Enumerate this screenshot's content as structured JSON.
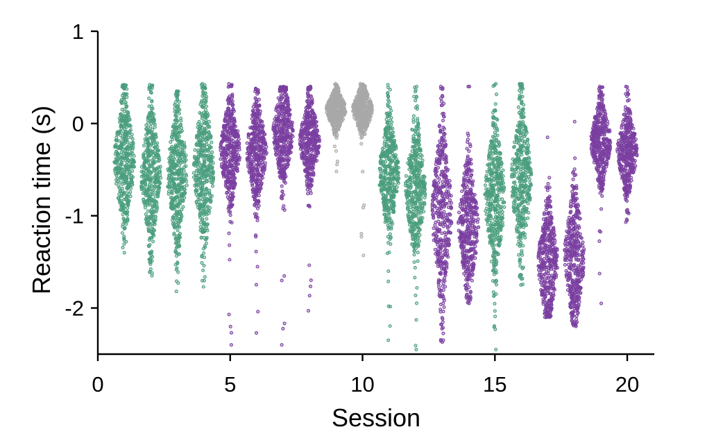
{
  "chart_data": {
    "type": "scatter",
    "title": "",
    "xlabel": "Session",
    "ylabel": "Reaction time (s)",
    "xlim": [
      0,
      21
    ],
    "ylim": [
      -2.5,
      1
    ],
    "xticks": [
      0,
      5,
      10,
      15,
      20
    ],
    "xtick_labels": [
      "0",
      "5",
      "10",
      "15",
      "20"
    ],
    "yticks": [
      1,
      0,
      -1,
      -2
    ],
    "ytick_labels": [
      "1",
      "0",
      "-1",
      "-2"
    ],
    "grid": false,
    "legend": "none",
    "colors": {
      "green": "#4a9e7e",
      "purple": "#7a3fa0",
      "gray": "#a8a8a8"
    },
    "sessions": [
      {
        "session": 1,
        "color": "green",
        "center": -0.4,
        "spread": 0.4,
        "max": 0.42,
        "min": -1.4
      },
      {
        "session": 2,
        "color": "green",
        "center": -0.55,
        "spread": 0.4,
        "max": 0.42,
        "min": -1.65
      },
      {
        "session": 3,
        "color": "green",
        "center": -0.55,
        "spread": 0.4,
        "max": 0.35,
        "min": -1.82
      },
      {
        "session": 4,
        "color": "green",
        "center": -0.5,
        "spread": 0.45,
        "max": 0.43,
        "min": -1.77
      },
      {
        "session": 5,
        "color": "purple",
        "center": -0.3,
        "spread": 0.3,
        "max": 0.43,
        "min": -2.4
      },
      {
        "session": 6,
        "color": "purple",
        "center": -0.3,
        "spread": 0.3,
        "max": 0.38,
        "min": -2.27
      },
      {
        "session": 7,
        "color": "purple",
        "center": -0.1,
        "spread": 0.3,
        "max": 0.4,
        "min": -2.4
      },
      {
        "session": 8,
        "color": "purple",
        "center": -0.2,
        "spread": 0.25,
        "max": 0.4,
        "min": -2.03
      },
      {
        "session": 9,
        "color": "gray",
        "center": 0.15,
        "spread": 0.12,
        "max": 0.43,
        "min": -0.52
      },
      {
        "session": 10,
        "color": "gray",
        "center": 0.15,
        "spread": 0.14,
        "max": 0.43,
        "min": -1.43
      },
      {
        "session": 11,
        "color": "green",
        "center": -0.55,
        "spread": 0.35,
        "max": 0.42,
        "min": -2.35
      },
      {
        "session": 12,
        "color": "green",
        "center": -0.7,
        "spread": 0.4,
        "max": 0.4,
        "min": -2.45
      },
      {
        "session": 13,
        "color": "purple",
        "center": -0.95,
        "spread": 0.5,
        "max": 0.4,
        "min": -2.37
      },
      {
        "session": 14,
        "color": "purple",
        "center": -1.1,
        "spread": 0.4,
        "max": 0.4,
        "min": -1.95
      },
      {
        "session": 15,
        "color": "green",
        "center": -0.8,
        "spread": 0.45,
        "max": 0.43,
        "min": -2.45
      },
      {
        "session": 16,
        "color": "green",
        "center": -0.6,
        "spread": 0.45,
        "max": 0.43,
        "min": -1.75
      },
      {
        "session": 17,
        "color": "purple",
        "center": -1.5,
        "spread": 0.35,
        "max": -0.15,
        "min": -2.1
      },
      {
        "session": 18,
        "color": "purple",
        "center": -1.45,
        "spread": 0.4,
        "max": 0.02,
        "min": -2.2
      },
      {
        "session": 19,
        "color": "purple",
        "center": -0.2,
        "spread": 0.25,
        "max": 0.4,
        "min": -1.95
      },
      {
        "session": 20,
        "color": "purple",
        "center": -0.3,
        "spread": 0.25,
        "max": 0.4,
        "min": -1.07
      }
    ]
  }
}
